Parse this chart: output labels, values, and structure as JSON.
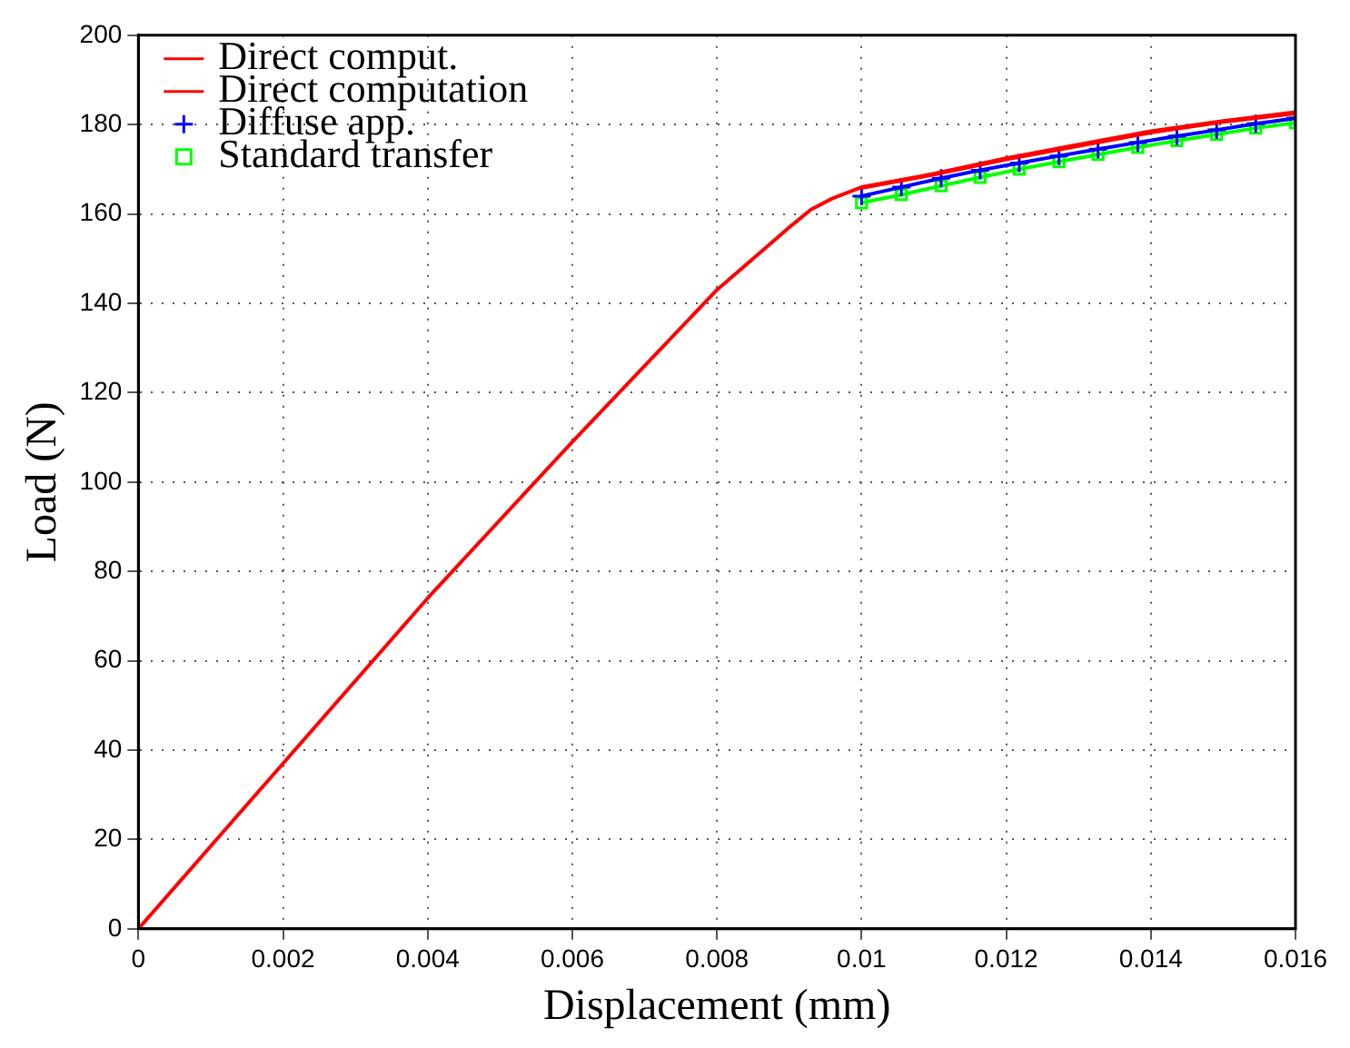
{
  "chart_data": {
    "type": "line",
    "xlabel": "Displacement (mm)",
    "ylabel": "Load (N)",
    "xlim": [
      0,
      0.016
    ],
    "ylim": [
      0,
      200
    ],
    "xticks": [
      0,
      0.002,
      0.004,
      0.006,
      0.008,
      0.01,
      0.012,
      0.014,
      0.016
    ],
    "yticks": [
      0,
      20,
      40,
      60,
      80,
      100,
      120,
      140,
      160,
      180,
      200
    ],
    "grid": true,
    "legend": "top left",
    "line_style": "solid",
    "series": [
      {
        "name": "Direct comput.",
        "color": "#ff0000",
        "marker": "none",
        "x": [
          0,
          0.002,
          0.004,
          0.006,
          0.008,
          0.009,
          0.0093,
          0.0096,
          0.01,
          0.011,
          0.012,
          0.013,
          0.014,
          0.015,
          0.016
        ],
        "values": [
          0,
          37,
          74,
          109,
          143,
          157,
          161,
          163.5,
          166,
          169,
          172.5,
          175.5,
          178.5,
          180.8,
          182.8
        ]
      },
      {
        "name": "Direct computation",
        "color": "#ff0000",
        "marker": "none",
        "x": [
          0.01,
          0.011,
          0.012,
          0.013,
          0.014,
          0.015,
          0.016
        ],
        "values": [
          165.8,
          168.8,
          172.2,
          175.2,
          178.2,
          180.6,
          182.5
        ]
      },
      {
        "name": "Diffuse app.",
        "color": "#0000ff",
        "marker": "cross",
        "x": [
          0.01,
          0.01055,
          0.0111,
          0.01164,
          0.01218,
          0.01273,
          0.01327,
          0.01382,
          0.01436,
          0.01491,
          0.01545,
          0.016
        ],
        "values": [
          164,
          166,
          168,
          169.8,
          171.4,
          173,
          174.5,
          176,
          177.4,
          178.8,
          180.2,
          181.4
        ]
      },
      {
        "name": "Standard transfer",
        "color": "#00ff00",
        "marker": "square",
        "x": [
          0.01,
          0.01055,
          0.0111,
          0.01164,
          0.01218,
          0.01273,
          0.01327,
          0.01382,
          0.01436,
          0.01491,
          0.01545,
          0.016
        ],
        "values": [
          162.5,
          164.3,
          166.3,
          168.2,
          170,
          171.7,
          173.3,
          174.9,
          176.4,
          177.8,
          179.2,
          180.4
        ]
      }
    ]
  }
}
